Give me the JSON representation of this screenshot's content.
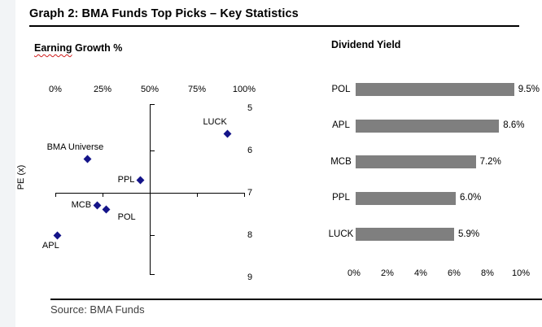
{
  "header": {
    "title": "Graph 2: BMA Funds Top Picks – Key Statistics"
  },
  "footer": {
    "source": "Source: BMA Funds"
  },
  "colors": {
    "marker_navy": "#141489",
    "bar_gray": "#7F7F7F",
    "left_strip": "#F2F4F6",
    "source_text": "#3F3F3F"
  },
  "chart_data": [
    {
      "type": "scatter",
      "title": "Earning Growth %",
      "title_misspelled_word": "Earning",
      "title_rest": " Growth %",
      "xlabel": "Earning Growth %",
      "ylabel": "PE (x)",
      "xlim": [
        0,
        100
      ],
      "ylim": [
        5,
        9
      ],
      "y_inverted": true,
      "axes_cross": {
        "x": 50,
        "y": 7
      },
      "x_axis_labels_position": "top",
      "y_axis_labels_position": "right",
      "grid": false,
      "marker": {
        "shape": "diamond",
        "color": "#141489"
      },
      "x_ticks": [
        {
          "label": "0%",
          "value": 0
        },
        {
          "label": "25%",
          "value": 25
        },
        {
          "label": "50%",
          "value": 50
        },
        {
          "label": "75%",
          "value": 75
        },
        {
          "label": "100%",
          "value": 100
        }
      ],
      "y_ticks": [
        {
          "label": "5",
          "value": 5
        },
        {
          "label": "6",
          "value": 6
        },
        {
          "label": "7",
          "value": 7
        },
        {
          "label": "8",
          "value": 8
        },
        {
          "label": "9",
          "value": 9
        }
      ],
      "points": [
        {
          "label": "BMA Universe",
          "x": 17,
          "y": 6.2,
          "label_pos": "above"
        },
        {
          "label": "LUCK",
          "x": 91,
          "y": 5.6,
          "label_pos": "above"
        },
        {
          "label": "PPL",
          "x": 45,
          "y": 6.7,
          "label_pos": "left"
        },
        {
          "label": "MCB",
          "x": 22,
          "y": 7.3,
          "label_pos": "left"
        },
        {
          "label": "POL",
          "x": 27,
          "y": 7.4,
          "label_pos": "below-right"
        },
        {
          "label": "APL",
          "x": 1,
          "y": 8.0,
          "label_pos": "below-left"
        }
      ]
    },
    {
      "type": "bar",
      "orientation": "horizontal",
      "title": "Dividend Yield",
      "categories": [
        "POL",
        "APL",
        "MCB",
        "PPL",
        "LUCK"
      ],
      "values": [
        9.5,
        8.6,
        7.2,
        6.0,
        5.9
      ],
      "value_labels": [
        "9.5%",
        "8.6%",
        "7.2%",
        "6.0%",
        "5.9%"
      ],
      "bar_color": "#7F7F7F",
      "xlim": [
        0,
        10
      ],
      "x_ticks": [
        {
          "label": "0%",
          "value": 0
        },
        {
          "label": "2%",
          "value": 2
        },
        {
          "label": "4%",
          "value": 4
        },
        {
          "label": "6%",
          "value": 6
        },
        {
          "label": "8%",
          "value": 8
        },
        {
          "label": "10%",
          "value": 10
        }
      ],
      "grid": false
    }
  ]
}
